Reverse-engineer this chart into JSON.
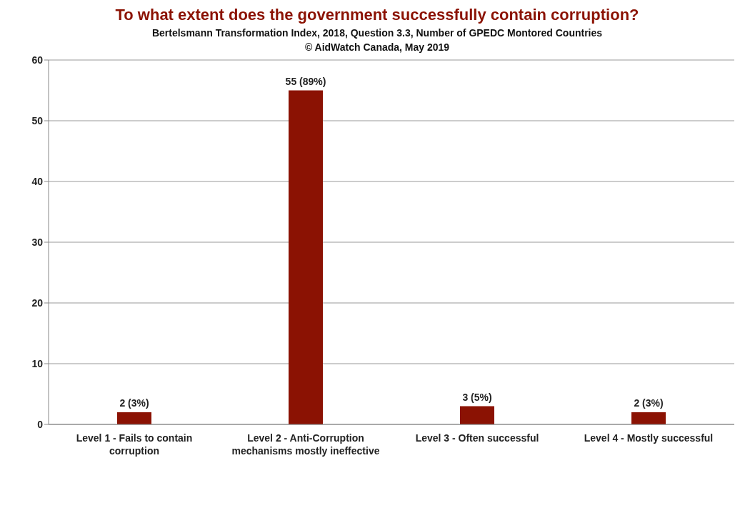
{
  "chart_data": {
    "type": "bar",
    "title": "To what extent does the government successfully contain corruption?",
    "subtitle": "Bertelsmann Transformation Index, 2018, Question 3.3, Number of GPEDC Montored Countries",
    "annotations": [
      "© AidWatch Canada, May 2019"
    ],
    "categories": [
      "Level 1 - Fails to contain corruption",
      "Level 2 - Anti-Corruption mechanisms mostly ineffective",
      "Level 3 - Often successful",
      "Level 4 - Mostly successful"
    ],
    "values": [
      2,
      55,
      3,
      2
    ],
    "color": "#8b1203",
    "value_labels": [
      "2 (3%)",
      "55 (89%)",
      "3 (5%)",
      "2 (3%)"
    ],
    "ylim": [
      0,
      60
    ],
    "yticks": [
      0,
      10,
      20,
      30,
      40,
      50,
      60
    ],
    "grid": "y"
  }
}
